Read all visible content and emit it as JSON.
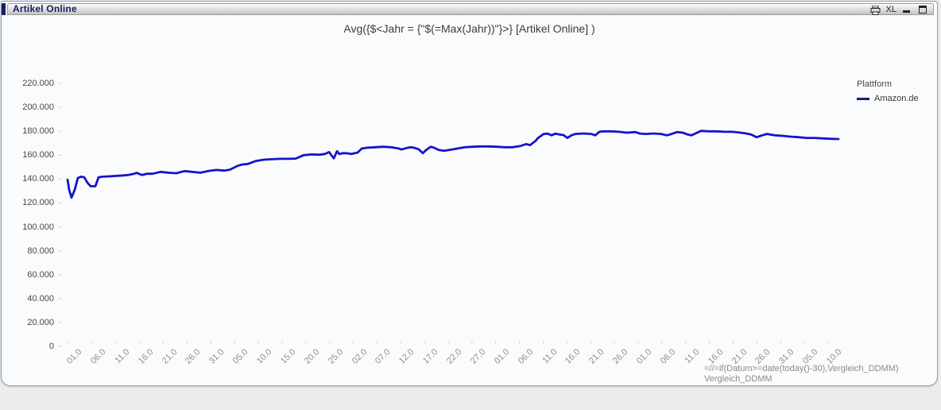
{
  "window": {
    "title": "Artikel Online",
    "caption": {
      "excel_label": "XL"
    }
  },
  "chart_data": {
    "type": "line",
    "title": "Avg({$<Jahr = {\"$(=Max(Jahr))\"}>} [Artikel Online] )",
    "legend": {
      "position": "right",
      "title": "Plattform",
      "entries": [
        {
          "label": "Amazon.de",
          "color": "#1b1b7e"
        }
      ]
    },
    "grid": false,
    "y_axis": {
      "ylim": [
        0,
        220000
      ],
      "tick_labels": [
        "220.000",
        "200.000",
        "180.000",
        "160.000",
        "140.000",
        "120.000",
        "100.000",
        "80.000",
        "60.000",
        "40.000",
        "20.000",
        "0"
      ]
    },
    "x_axis": {
      "tick_labels": [
        "01.0",
        "06.0",
        "11.0",
        "16.0",
        "21.0",
        "26.0",
        "31.0",
        "05.0",
        "10.0",
        "15.0",
        "20.0",
        "25.0",
        "02.0",
        "07.0",
        "12.0",
        "17.0",
        "22.0",
        "27.0",
        "01.0",
        "06.0",
        "11.0",
        "16.0",
        "21.0",
        "26.0",
        "01.0",
        "06.0",
        "11.0",
        "16.0",
        "21.0",
        "26.0",
        "31.0",
        "05.0",
        "10.0"
      ],
      "note_line1": "=//=if(Datum>=date(today()-30),Vergleich_DDMM)",
      "note_line2": "Vergleich_DDMM"
    },
    "series": [
      {
        "name": "Amazon.de",
        "color": "#1414cc",
        "points": [
          [
            83,
            139500
          ],
          [
            85,
            131000
          ],
          [
            88,
            124500
          ],
          [
            92,
            131000
          ],
          [
            96,
            141000
          ],
          [
            100,
            142000
          ],
          [
            104,
            141500
          ],
          [
            108,
            137000
          ],
          [
            112,
            134000
          ],
          [
            118,
            134000
          ],
          [
            122,
            141500
          ],
          [
            127,
            142000
          ],
          [
            137,
            142300
          ],
          [
            147,
            142800
          ],
          [
            153,
            143000
          ],
          [
            160,
            143500
          ],
          [
            167,
            144500
          ],
          [
            170,
            145200
          ],
          [
            174,
            144000
          ],
          [
            177,
            143400
          ],
          [
            183,
            144500
          ],
          [
            190,
            144400
          ],
          [
            200,
            146000
          ],
          [
            210,
            145300
          ],
          [
            220,
            144900
          ],
          [
            230,
            146700
          ],
          [
            240,
            146000
          ],
          [
            250,
            145300
          ],
          [
            260,
            146700
          ],
          [
            270,
            147600
          ],
          [
            280,
            147100
          ],
          [
            287,
            147800
          ],
          [
            297,
            151100
          ],
          [
            303,
            152200
          ],
          [
            310,
            152700
          ],
          [
            320,
            155100
          ],
          [
            330,
            156200
          ],
          [
            340,
            156600
          ],
          [
            350,
            156900
          ],
          [
            360,
            156900
          ],
          [
            370,
            157100
          ],
          [
            380,
            160000
          ],
          [
            390,
            160600
          ],
          [
            400,
            160400
          ],
          [
            407,
            161000
          ],
          [
            412,
            162600
          ],
          [
            415,
            160000
          ],
          [
            418,
            157300
          ],
          [
            422,
            163300
          ],
          [
            425,
            161000
          ],
          [
            430,
            161700
          ],
          [
            435,
            161500
          ],
          [
            440,
            161000
          ],
          [
            448,
            162200
          ],
          [
            453,
            165500
          ],
          [
            460,
            166200
          ],
          [
            470,
            166600
          ],
          [
            480,
            167000
          ],
          [
            490,
            166600
          ],
          [
            500,
            165500
          ],
          [
            503,
            164800
          ],
          [
            510,
            166000
          ],
          [
            515,
            166600
          ],
          [
            520,
            166000
          ],
          [
            525,
            164800
          ],
          [
            530,
            161700
          ],
          [
            535,
            164800
          ],
          [
            540,
            167000
          ],
          [
            545,
            166000
          ],
          [
            550,
            164400
          ],
          [
            557,
            163700
          ],
          [
            563,
            164400
          ],
          [
            573,
            165500
          ],
          [
            583,
            166600
          ],
          [
            593,
            167000
          ],
          [
            603,
            167300
          ],
          [
            613,
            167300
          ],
          [
            623,
            167000
          ],
          [
            633,
            166600
          ],
          [
            643,
            166600
          ],
          [
            653,
            167700
          ],
          [
            660,
            169300
          ],
          [
            665,
            168400
          ],
          [
            668,
            170000
          ],
          [
            672,
            172000
          ],
          [
            675,
            174400
          ],
          [
            682,
            177700
          ],
          [
            687,
            178000
          ],
          [
            692,
            176600
          ],
          [
            697,
            178000
          ],
          [
            702,
            177300
          ],
          [
            707,
            176800
          ],
          [
            712,
            174400
          ],
          [
            717,
            176600
          ],
          [
            722,
            177700
          ],
          [
            732,
            178100
          ],
          [
            742,
            177700
          ],
          [
            747,
            176600
          ],
          [
            752,
            179500
          ],
          [
            757,
            179900
          ],
          [
            767,
            179900
          ],
          [
            777,
            179500
          ],
          [
            787,
            178800
          ],
          [
            797,
            179300
          ],
          [
            803,
            178100
          ],
          [
            810,
            177700
          ],
          [
            820,
            178100
          ],
          [
            830,
            177700
          ],
          [
            837,
            176600
          ],
          [
            843,
            177700
          ],
          [
            850,
            179300
          ],
          [
            857,
            178800
          ],
          [
            863,
            177300
          ],
          [
            868,
            176600
          ],
          [
            873,
            178100
          ],
          [
            880,
            180300
          ],
          [
            890,
            179900
          ],
          [
            900,
            179900
          ],
          [
            910,
            179500
          ],
          [
            920,
            179500
          ],
          [
            930,
            178800
          ],
          [
            937,
            178100
          ],
          [
            943,
            177300
          ],
          [
            950,
            175000
          ],
          [
            957,
            176600
          ],
          [
            963,
            177700
          ],
          [
            973,
            176600
          ],
          [
            983,
            176100
          ],
          [
            993,
            175500
          ],
          [
            1003,
            175000
          ],
          [
            1013,
            174400
          ],
          [
            1023,
            174400
          ],
          [
            1033,
            174000
          ],
          [
            1043,
            173700
          ],
          [
            1053,
            173500
          ]
        ]
      }
    ]
  }
}
